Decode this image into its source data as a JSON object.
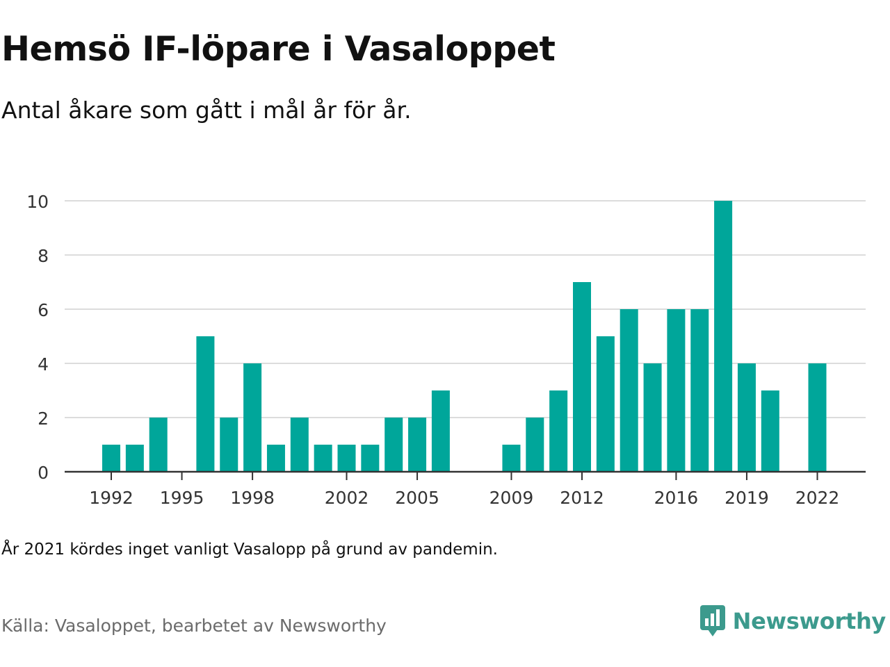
{
  "header": {
    "title": "Hemsö IF-löpare i Vasaloppet",
    "subtitle": "Antal åkare som gått i mål år för år."
  },
  "footer": {
    "note": "År 2021 kördes inget vanligt Vasalopp på grund av pandemin.",
    "source": "Källa: Vasaloppet, bearbetet av Newsworthy",
    "brand_name": "Newsworthy",
    "brand_icon": "newsworthy-logo-icon"
  },
  "colors": {
    "bar": "#00a69a",
    "grid": "#dcdcdc",
    "axis": "#333333",
    "text": "#111111",
    "muted": "#6b6b6b",
    "brand": "#3c9a8d"
  },
  "chart_data": {
    "type": "bar",
    "title": "Hemsö IF-löpare i Vasaloppet",
    "subtitle": "Antal åkare som gått i mål år för år.",
    "xlabel": "",
    "ylabel": "",
    "categories": [
      1992,
      1993,
      1994,
      1995,
      1996,
      1997,
      1998,
      1999,
      2000,
      2001,
      2002,
      2003,
      2004,
      2005,
      2006,
      2007,
      2008,
      2009,
      2010,
      2011,
      2012,
      2013,
      2014,
      2015,
      2016,
      2017,
      2018,
      2019,
      2020,
      2021,
      2022
    ],
    "values": [
      1,
      1,
      2,
      0,
      5,
      2,
      4,
      1,
      2,
      1,
      1,
      1,
      2,
      2,
      3,
      0,
      0,
      1,
      2,
      3,
      7,
      5,
      6,
      4,
      6,
      6,
      10,
      4,
      3,
      0,
      4
    ],
    "x_tick_labels": [
      "1992",
      "1995",
      "1998",
      "2002",
      "2005",
      "2009",
      "2012",
      "2016",
      "2019",
      "2022"
    ],
    "y_ticks": [
      0,
      2,
      4,
      6,
      8,
      10
    ],
    "ylim": [
      0,
      10
    ],
    "grid": true,
    "legend": "none"
  }
}
